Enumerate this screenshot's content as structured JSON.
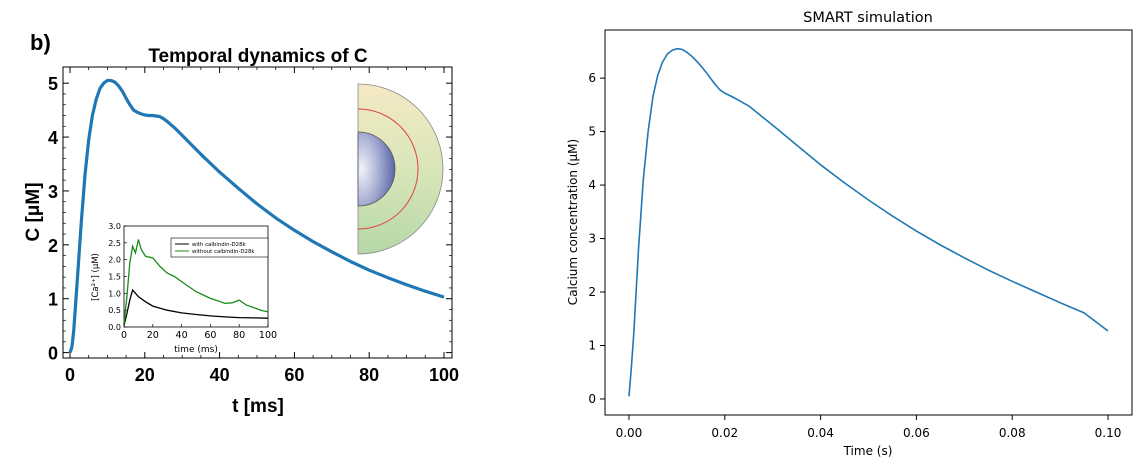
{
  "chart_data": [
    {
      "type": "line",
      "panel_label": "b)",
      "title": "Temporal dynamics of C",
      "xlabel": "t [ms]",
      "ylabel": "C [μM]",
      "xlim": [
        0,
        100
      ],
      "ylim": [
        -0.1,
        5.3
      ],
      "xticks": [
        "0",
        "20",
        "40",
        "60",
        "80",
        "100"
      ],
      "yticks": [
        "0",
        "1",
        "2",
        "3",
        "4",
        "5"
      ],
      "colors": {
        "line": "#1f77b4",
        "inset_with": "#000000",
        "inset_without": "#1a8a1a"
      },
      "series": [
        {
          "x": [
            0,
            0.5,
            1,
            2,
            3,
            4,
            5,
            6,
            7,
            8,
            9,
            10,
            11,
            12,
            13,
            14,
            15,
            16,
            17,
            18,
            19,
            20,
            21,
            22,
            23,
            24,
            25,
            26,
            28,
            30,
            35,
            40,
            45,
            50,
            55,
            60,
            65,
            70,
            75,
            80,
            85,
            90,
            95,
            100
          ],
          "values": [
            0.0,
            0.1,
            0.4,
            1.4,
            2.4,
            3.3,
            3.95,
            4.4,
            4.7,
            4.9,
            5.0,
            5.05,
            5.05,
            5.02,
            4.95,
            4.85,
            4.72,
            4.6,
            4.5,
            4.46,
            4.43,
            4.41,
            4.4,
            4.4,
            4.39,
            4.38,
            4.34,
            4.29,
            4.17,
            4.03,
            3.68,
            3.35,
            3.05,
            2.76,
            2.5,
            2.27,
            2.06,
            1.87,
            1.69,
            1.53,
            1.39,
            1.26,
            1.14,
            1.03
          ]
        }
      ],
      "inset": {
        "xlabel": "time (ms)",
        "ylabel": "[Ca²⁺] (μM)",
        "xlim": [
          0,
          100
        ],
        "ylim": [
          0,
          3.0
        ],
        "xticks": [
          "0",
          "20",
          "40",
          "60",
          "80",
          "100"
        ],
        "yticks": [
          "0.0",
          "0.5",
          "1.0",
          "1.5",
          "2.0",
          "2.5",
          "3.0"
        ],
        "legend": [
          "with calbindin-D28k",
          "without calbindin-D28k"
        ],
        "series": [
          {
            "name": "with calbindin-D28k",
            "x": [
              0,
              2,
              4,
              6,
              8,
              10,
              15,
              20,
              30,
              40,
              50,
              60,
              70,
              80,
              90,
              100
            ],
            "values": [
              0.05,
              0.4,
              0.8,
              1.1,
              1.0,
              0.9,
              0.75,
              0.62,
              0.5,
              0.42,
              0.37,
              0.33,
              0.3,
              0.28,
              0.27,
              0.26
            ]
          },
          {
            "name": "without calbindin-D28k",
            "x": [
              0,
              2,
              4,
              6,
              8,
              10,
              12,
              15,
              20,
              25,
              30,
              35,
              40,
              45,
              50,
              55,
              60,
              65,
              70,
              75,
              80,
              85,
              90,
              95,
              100
            ],
            "values": [
              0.1,
              0.9,
              1.9,
              2.4,
              2.2,
              2.6,
              2.3,
              2.1,
              2.05,
              1.8,
              1.6,
              1.5,
              1.35,
              1.2,
              1.05,
              0.95,
              0.85,
              0.78,
              0.7,
              0.72,
              0.8,
              0.65,
              0.58,
              0.5,
              0.45
            ]
          }
        ]
      }
    },
    {
      "type": "line",
      "title": "SMART simulation",
      "xlabel": "Time (s)",
      "ylabel": "Calcium concentration (μM)",
      "xlim": [
        -0.005,
        0.105
      ],
      "ylim": [
        -0.3,
        6.9
      ],
      "xticks": [
        0.0,
        0.02,
        0.04,
        0.06,
        0.08,
        0.1
      ],
      "xtick_labels": [
        "0.00",
        "0.02",
        "0.04",
        "0.06",
        "0.08",
        "0.10"
      ],
      "yticks": [
        0,
        1,
        2,
        3,
        4,
        5,
        6
      ],
      "yticks_labels": [
        "0",
        "1",
        "2",
        "3",
        "4",
        "5",
        "6"
      ],
      "colors": {
        "line": "#1f77b4"
      },
      "series": [
        {
          "x": [
            0.0,
            0.0005,
            0.001,
            0.002,
            0.003,
            0.004,
            0.005,
            0.006,
            0.007,
            0.008,
            0.009,
            0.01,
            0.011,
            0.012,
            0.013,
            0.014,
            0.015,
            0.016,
            0.017,
            0.018,
            0.019,
            0.02,
            0.022,
            0.025,
            0.03,
            0.035,
            0.04,
            0.045,
            0.05,
            0.055,
            0.06,
            0.065,
            0.07,
            0.075,
            0.08,
            0.085,
            0.09,
            0.095,
            0.1
          ],
          "values": [
            0.05,
            0.6,
            1.2,
            2.8,
            4.1,
            5.0,
            5.65,
            6.05,
            6.3,
            6.45,
            6.52,
            6.55,
            6.54,
            6.49,
            6.42,
            6.33,
            6.23,
            6.12,
            6.0,
            5.88,
            5.78,
            5.72,
            5.63,
            5.48,
            5.12,
            4.75,
            4.38,
            4.04,
            3.72,
            3.42,
            3.14,
            2.88,
            2.64,
            2.41,
            2.2,
            2.0,
            1.8,
            1.61,
            1.27
          ]
        }
      ]
    }
  ]
}
